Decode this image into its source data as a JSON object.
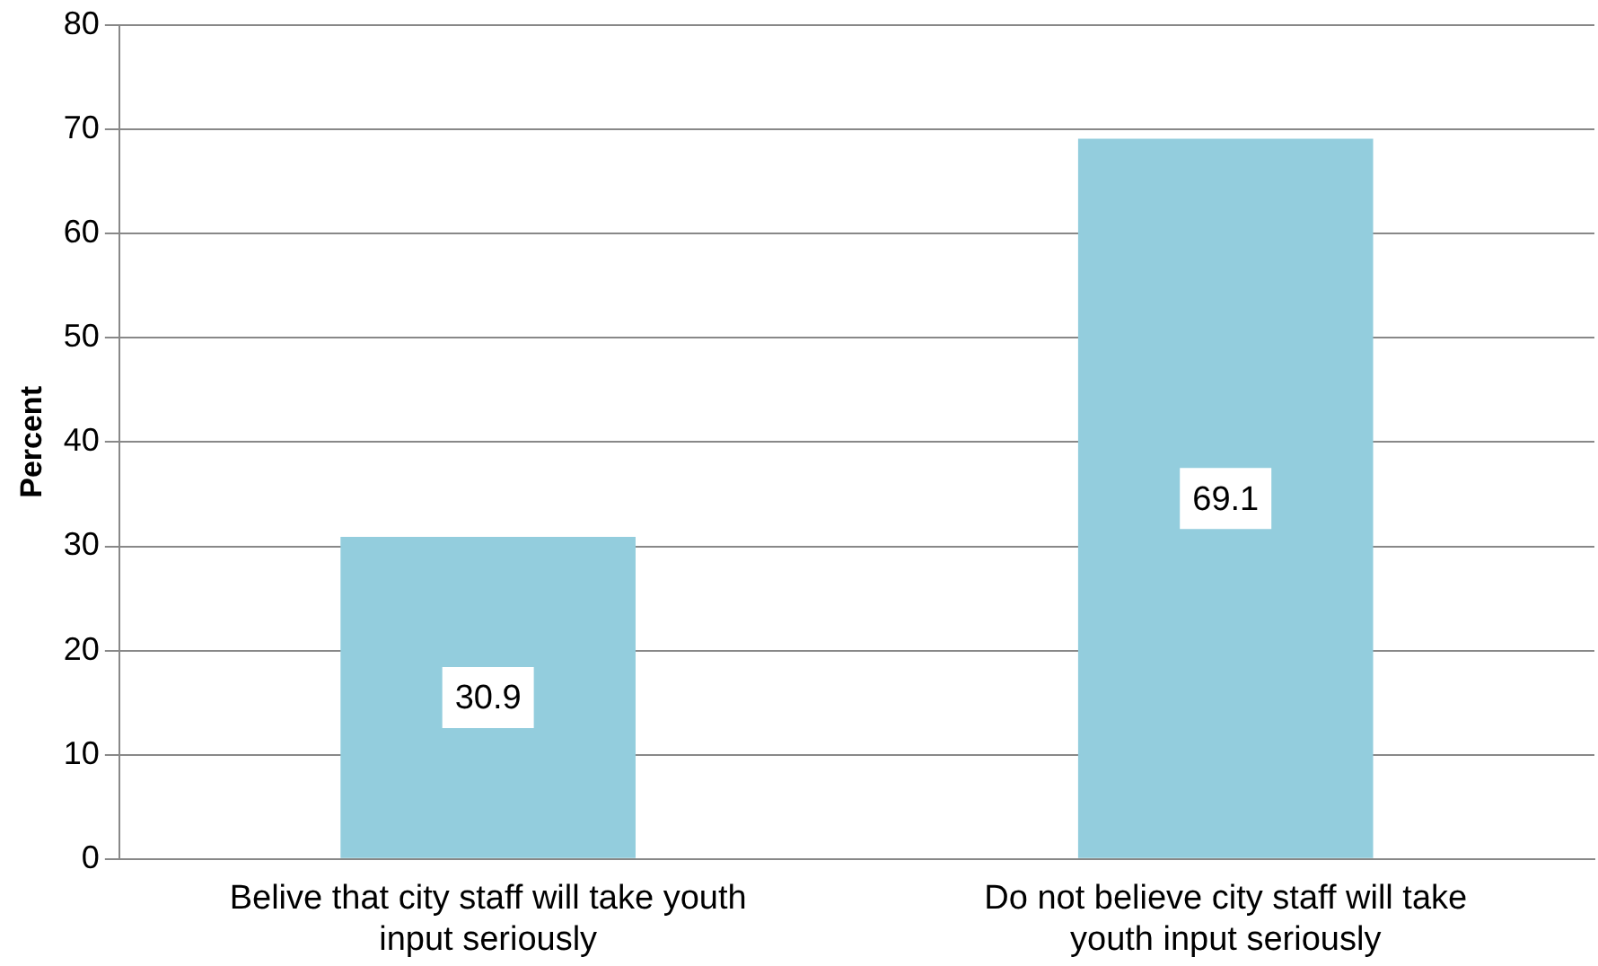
{
  "chart_data": {
    "type": "bar",
    "ylabel": "Percent",
    "categories": [
      "Belive that city staff will take youth input seriously",
      "Do not believe city staff will take youth input seriously"
    ],
    "values": [
      30.9,
      69.1
    ],
    "color": "#93cddd",
    "ylim": [
      0,
      80
    ],
    "yticks": [
      0,
      10,
      20,
      30,
      40,
      50,
      60,
      70,
      80
    ],
    "grid": "y",
    "data_labels": true,
    "legend": false
  }
}
